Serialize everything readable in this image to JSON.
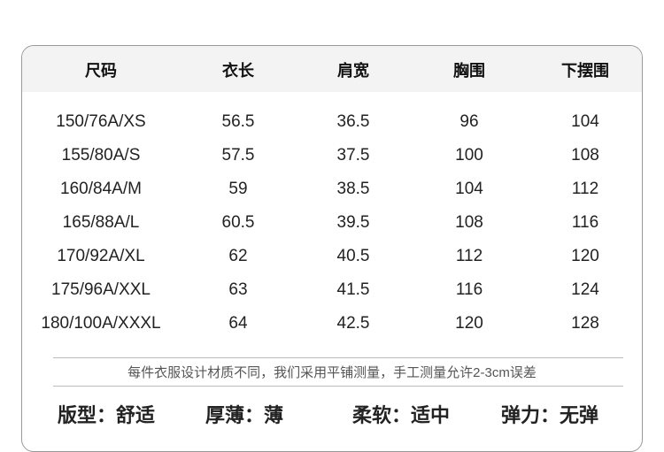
{
  "table": {
    "headers": [
      "尺码",
      "衣长",
      "肩宽",
      "胸围",
      "下摆围"
    ],
    "rows": [
      [
        "150/76A/XS",
        "56.5",
        "36.5",
        "96",
        "104"
      ],
      [
        "155/80A/S",
        "57.5",
        "37.5",
        "100",
        "108"
      ],
      [
        "160/84A/M",
        "59",
        "38.5",
        "104",
        "112"
      ],
      [
        "165/88A/L",
        "60.5",
        "39.5",
        "108",
        "116"
      ],
      [
        "170/92A/XL",
        "62",
        "40.5",
        "112",
        "120"
      ],
      [
        "175/96A/XXL",
        "63",
        "41.5",
        "116",
        "124"
      ],
      [
        "180/100A/XXXL",
        "64",
        "42.5",
        "120",
        "128"
      ]
    ]
  },
  "note": "每件衣服设计材质不同，我们采用平铺测量，手工测量允许2-3cm误差",
  "attributes": [
    "版型：舒适",
    "厚薄：薄",
    "柔软：适中",
    "弹力：无弹"
  ],
  "colors": {
    "header_bg": "#f3f3f3",
    "border": "#999999"
  }
}
